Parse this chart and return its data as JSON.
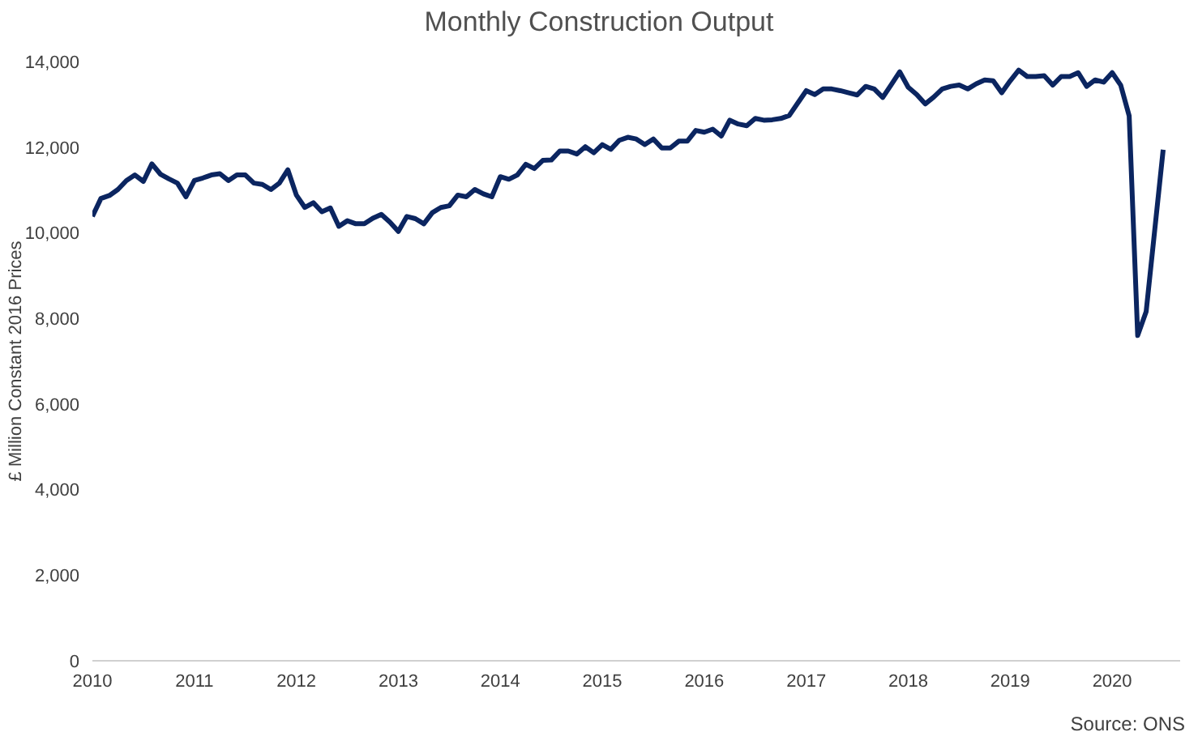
{
  "chart_data": {
    "type": "line",
    "title": "Monthly Construction Output",
    "ylabel": "£ Million Constant 2016 Prices",
    "annotations": [
      "Source: ONS"
    ],
    "x": [
      "2010-01",
      "2010-02",
      "2010-03",
      "2010-04",
      "2010-05",
      "2010-06",
      "2010-07",
      "2010-08",
      "2010-09",
      "2010-10",
      "2010-11",
      "2010-12",
      "2011-01",
      "2011-02",
      "2011-03",
      "2011-04",
      "2011-05",
      "2011-06",
      "2011-07",
      "2011-08",
      "2011-09",
      "2011-10",
      "2011-11",
      "2011-12",
      "2012-01",
      "2012-02",
      "2012-03",
      "2012-04",
      "2012-05",
      "2012-06",
      "2012-07",
      "2012-08",
      "2012-09",
      "2012-10",
      "2012-11",
      "2012-12",
      "2013-01",
      "2013-02",
      "2013-03",
      "2013-04",
      "2013-05",
      "2013-06",
      "2013-07",
      "2013-08",
      "2013-09",
      "2013-10",
      "2013-11",
      "2013-12",
      "2014-01",
      "2014-02",
      "2014-03",
      "2014-04",
      "2014-05",
      "2014-06",
      "2014-07",
      "2014-08",
      "2014-09",
      "2014-10",
      "2014-11",
      "2014-12",
      "2015-01",
      "2015-02",
      "2015-03",
      "2015-04",
      "2015-05",
      "2015-06",
      "2015-07",
      "2015-08",
      "2015-09",
      "2015-10",
      "2015-11",
      "2015-12",
      "2016-01",
      "2016-02",
      "2016-03",
      "2016-04",
      "2016-05",
      "2016-06",
      "2016-07",
      "2016-08",
      "2016-09",
      "2016-10",
      "2016-11",
      "2016-12",
      "2017-01",
      "2017-02",
      "2017-03",
      "2017-04",
      "2017-05",
      "2017-06",
      "2017-07",
      "2017-08",
      "2017-09",
      "2017-10",
      "2017-11",
      "2017-12",
      "2018-01",
      "2018-02",
      "2018-03",
      "2018-04",
      "2018-05",
      "2018-06",
      "2018-07",
      "2018-08",
      "2018-09",
      "2018-10",
      "2018-11",
      "2018-12",
      "2019-01",
      "2019-02",
      "2019-03",
      "2019-04",
      "2019-05",
      "2019-06",
      "2019-07",
      "2019-08",
      "2019-09",
      "2019-10",
      "2019-11",
      "2019-12",
      "2020-01",
      "2020-02",
      "2020-03",
      "2020-04",
      "2020-05",
      "2020-06",
      "2020-07"
    ],
    "series": [
      {
        "color": "#0b2560",
        "values": [
          10380,
          10800,
          10870,
          11010,
          11220,
          11350,
          11200,
          11610,
          11370,
          11260,
          11160,
          10840,
          11220,
          11280,
          11350,
          11380,
          11220,
          11350,
          11350,
          11160,
          11130,
          11010,
          11160,
          11470,
          10880,
          10590,
          10700,
          10490,
          10580,
          10150,
          10280,
          10210,
          10210,
          10340,
          10430,
          10250,
          10030,
          10380,
          10330,
          10210,
          10470,
          10590,
          10630,
          10880,
          10840,
          11010,
          10910,
          10840,
          11310,
          11250,
          11350,
          11600,
          11500,
          11690,
          11700,
          11910,
          11910,
          11840,
          12010,
          11870,
          12060,
          11950,
          12160,
          12230,
          12190,
          12060,
          12190,
          11980,
          11980,
          12140,
          12140,
          12390,
          12350,
          12420,
          12260,
          12630,
          12540,
          12500,
          12670,
          12630,
          12640,
          12670,
          12740,
          13030,
          13320,
          13230,
          13360,
          13360,
          13320,
          13270,
          13220,
          13420,
          13360,
          13160,
          13460,
          13760,
          13400,
          13230,
          13010,
          13170,
          13360,
          13420,
          13450,
          13360,
          13480,
          13570,
          13550,
          13270,
          13550,
          13800,
          13650,
          13650,
          13670,
          13450,
          13650,
          13650,
          13740,
          13420,
          13570,
          13520,
          13740,
          13450,
          12730,
          7600,
          8160,
          10050,
          11940
        ]
      }
    ],
    "xlim": [
      "2010-01",
      "2020-09"
    ],
    "xticks": [
      "2010",
      "2011",
      "2012",
      "2013",
      "2014",
      "2015",
      "2016",
      "2017",
      "2018",
      "2019",
      "2020"
    ],
    "ylim": [
      0,
      14000
    ],
    "yticks": [
      0,
      {
        "value": 2000,
        "label": "2,000"
      },
      {
        "value": 4000,
        "label": "4,000"
      },
      {
        "value": 6000,
        "label": "6,000"
      },
      {
        "value": 8000,
        "label": "8,000"
      },
      {
        "value": 10000,
        "label": "10,000"
      },
      {
        "value": 12000,
        "label": "12,000"
      },
      {
        "value": 14000,
        "label": "14,000"
      }
    ],
    "grid": false,
    "legend": false
  }
}
